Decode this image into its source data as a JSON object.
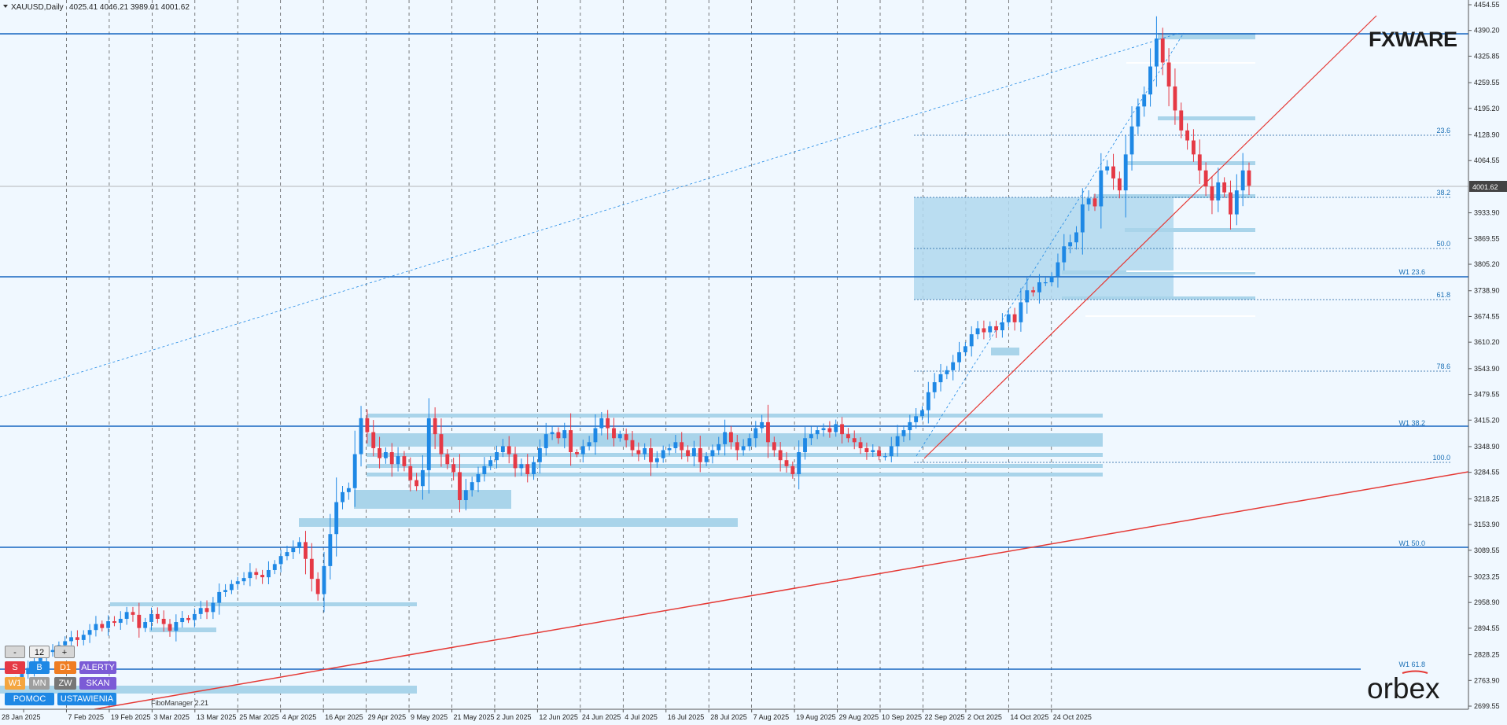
{
  "header": {
    "symbol": "XAUUSD,Daily",
    "ohlc": "4025.41 4046.21 3989.01 4001.62"
  },
  "price_axis": {
    "ticks": [
      "4454.55",
      "4390.20",
      "4325.85",
      "4259.55",
      "4195.20",
      "4128.90",
      "4064.55",
      "3933.90",
      "3869.55",
      "3805.20",
      "3738.90",
      "3674.55",
      "3610.20",
      "3543.90",
      "3479.55",
      "3415.20",
      "3348.90",
      "3284.55",
      "3218.25",
      "3153.90",
      "3089.55",
      "3023.25",
      "2958.90",
      "2894.55",
      "2828.25",
      "2763.90",
      "2699.55"
    ],
    "current_price": "4001.62"
  },
  "time_axis": {
    "labels": [
      "28 Jan 2025",
      "7 Feb 2025",
      "19 Feb 2025",
      "3 Mar 2025",
      "13 Mar 2025",
      "25 Mar 2025",
      "4 Apr 2025",
      "16 Apr 2025",
      "29 Apr 2025",
      "9 May 2025",
      "21 May 2025",
      "2 Jun 2025",
      "12 Jun 2025",
      "24 Jun 2025",
      "4 Jul 2025",
      "16 Jul 2025",
      "28 Jul 2025",
      "7 Aug 2025",
      "19 Aug 2025",
      "29 Aug 2025",
      "10 Sep 2025",
      "22 Sep 2025",
      "2 Oct 2025",
      "14 Oct 2025",
      "24 Oct 2025"
    ]
  },
  "fibo_labels": {
    "f236": "23.6",
    "f382": "38.2",
    "f500": "50.0",
    "f618": "61.8",
    "f786": "78.6",
    "f1000": "100.0",
    "w1_236": "W1 23.6",
    "w1_382": "W1 38.2",
    "w1_500": "W1 50.0",
    "w1_618": "W1 61.8"
  },
  "panel": {
    "minus": "-",
    "count": "12",
    "plus": "+",
    "sell": "S",
    "buy": "B",
    "d1": "D1",
    "alerty": "ALERTY",
    "w1": "W1",
    "mn": "MN",
    "zw": "ZW",
    "skan": "SKAN",
    "pomoc": "POMOC",
    "ustawienia": "USTAWIENIA",
    "fibo_manager": "FiboManager 2.21"
  },
  "logos": {
    "fxware": "FXWARE",
    "orbex": "orbex"
  },
  "colors": {
    "background": "#f0f8ff",
    "bull": "#1e88e5",
    "bear": "#e53945",
    "zone": "#a9d4ea",
    "hline": "#1565c0",
    "trend": "#e53935"
  },
  "chart_data": {
    "type": "candlestick",
    "symbol": "XAUUSD",
    "timeframe": "Daily",
    "ylim": [
      2699.55,
      4454.55
    ],
    "last_close": 4001.62,
    "closes": [
      2765,
      2780,
      2795,
      2812,
      2825,
      2835,
      2840,
      2852,
      2862,
      2872,
      2865,
      2878,
      2890,
      2905,
      2895,
      2912,
      2908,
      2918,
      2935,
      2928,
      2895,
      2910,
      2930,
      2918,
      2905,
      2888,
      2910,
      2920,
      2915,
      2930,
      2945,
      2935,
      2958,
      2985,
      2990,
      3005,
      3012,
      3020,
      3035,
      3028,
      3022,
      3040,
      3055,
      3075,
      3085,
      3095,
      3110,
      3068,
      3018,
      2980,
      3050,
      3130,
      3210,
      3235,
      3245,
      3330,
      3420,
      3385,
      3345,
      3320,
      3335,
      3305,
      3325,
      3300,
      3265,
      3250,
      3290,
      3420,
      3380,
      3330,
      3305,
      3285,
      3215,
      3240,
      3260,
      3280,
      3300,
      3315,
      3335,
      3350,
      3330,
      3295,
      3305,
      3280,
      3310,
      3345,
      3380,
      3385,
      3370,
      3390,
      3335,
      3330,
      3350,
      3360,
      3395,
      3420,
      3395,
      3370,
      3380,
      3365,
      3340,
      3330,
      3345,
      3310,
      3320,
      3340,
      3345,
      3360,
      3340,
      3325,
      3345,
      3310,
      3325,
      3340,
      3355,
      3385,
      3360,
      3340,
      3350,
      3370,
      3395,
      3410,
      3360,
      3340,
      3315,
      3300,
      3280,
      3335,
      3370,
      3380,
      3390,
      3395,
      3385,
      3405,
      3380,
      3370,
      3360,
      3345,
      3335,
      3340,
      3325,
      3325,
      3350,
      3375,
      3390,
      3410,
      3425,
      3440,
      3485,
      3510,
      3530,
      3540,
      3560,
      3585,
      3600,
      3630,
      3645,
      3635,
      3650,
      3640,
      3660,
      3680,
      3660,
      3710,
      3740,
      3735,
      3760,
      3760,
      3775,
      3810,
      3850,
      3860,
      3885,
      3955,
      3970,
      3950,
      4040,
      4050,
      4020,
      3990,
      4080,
      4150,
      4200,
      4230,
      4300,
      4370,
      4310,
      4250,
      4190,
      4140,
      4115,
      4080,
      4040,
      4000,
      3965,
      4010,
      3985,
      3930,
      3990,
      4040,
      4001.62
    ]
  }
}
